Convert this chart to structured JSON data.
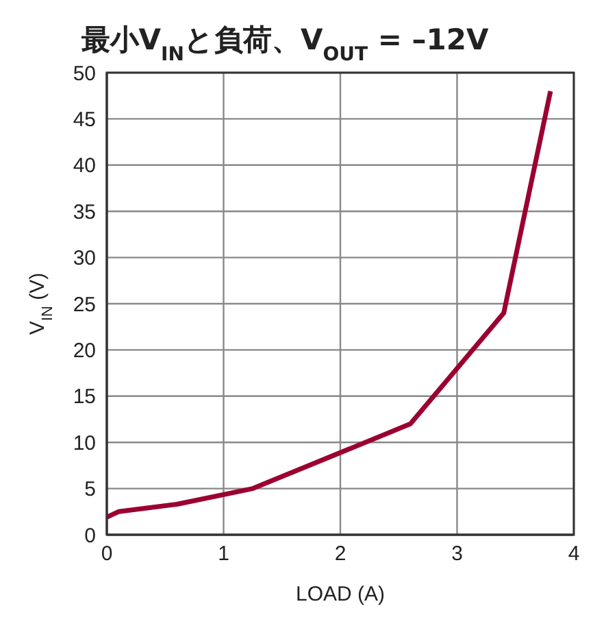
{
  "chart_data": {
    "type": "line",
    "title": "最小V$_{IN}$と負荷、V$_{OUT}$ = –12V",
    "xlabel": "LOAD (A)",
    "ylabel": "V$_{IN}$ (V)",
    "series": [
      {
        "color": "#9b0030",
        "x": [
          0,
          0.1,
          0.6,
          1.25,
          2.6,
          3.4,
          3.8
        ],
        "values": [
          1.9,
          2.5,
          3.3,
          5,
          12,
          24,
          48
        ]
      }
    ],
    "xlim": [
      0,
      4
    ],
    "xticks": [
      0,
      1,
      2,
      3,
      4
    ],
    "ylim": [
      0,
      50
    ],
    "yticks": [
      0,
      5,
      10,
      15,
      20,
      25,
      30,
      35,
      40,
      45,
      50
    ],
    "grid": true,
    "legend": false,
    "marker": "none",
    "line_style": "solid"
  }
}
